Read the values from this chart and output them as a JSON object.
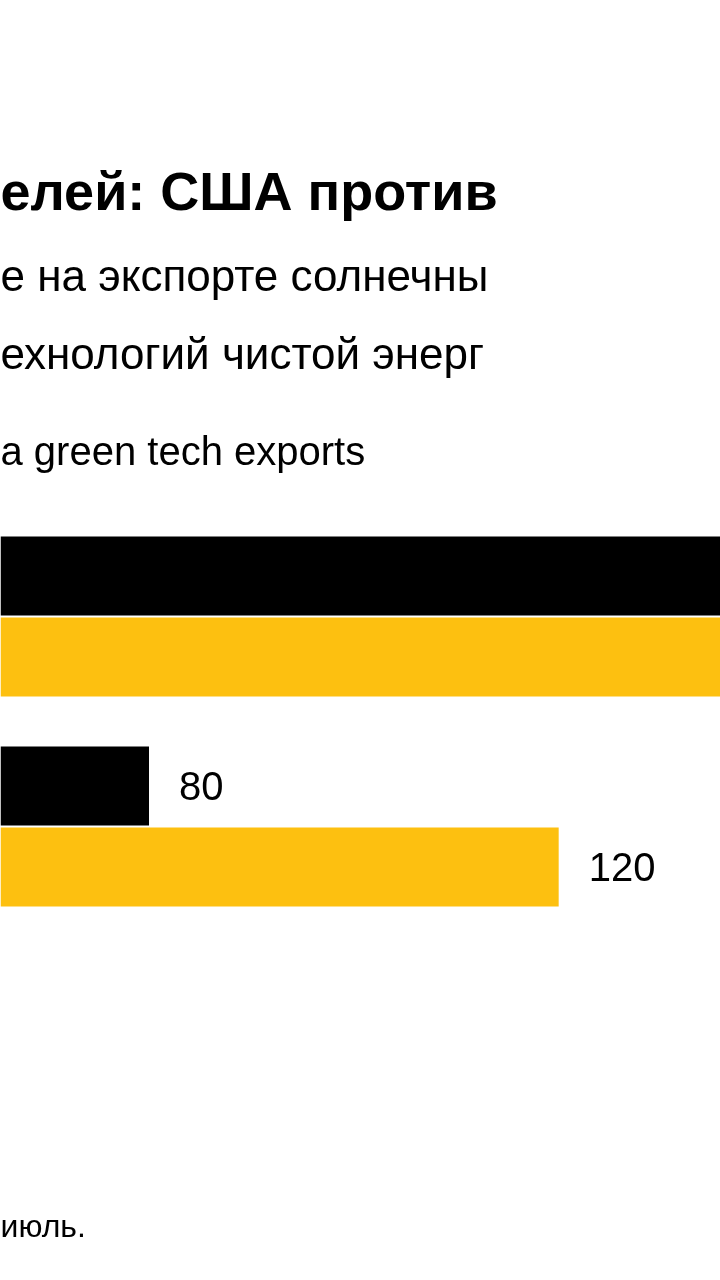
{
  "chart_data": {
    "type": "bar",
    "orientation": "horizontal",
    "title": "елей: США против",
    "subtitle": "е на экспорте солнечны\nехнологий чистой энерг",
    "annotations": [
      "a green tech exports",
      "июль."
    ],
    "categories": [
      null,
      null
    ],
    "xlim": [
      65.5,
      135.8
    ],
    "tick_labels": false,
    "grid": false,
    "series": [
      {
        "color": "#000000",
        "values": [
          135.8,
          80
        ],
        "value_labels": [
          null,
          "80"
        ]
      },
      {
        "color": "#fdc010",
        "values": [
          135.8,
          120
        ],
        "value_labels": [
          null,
          "120"
        ]
      }
    ]
  }
}
